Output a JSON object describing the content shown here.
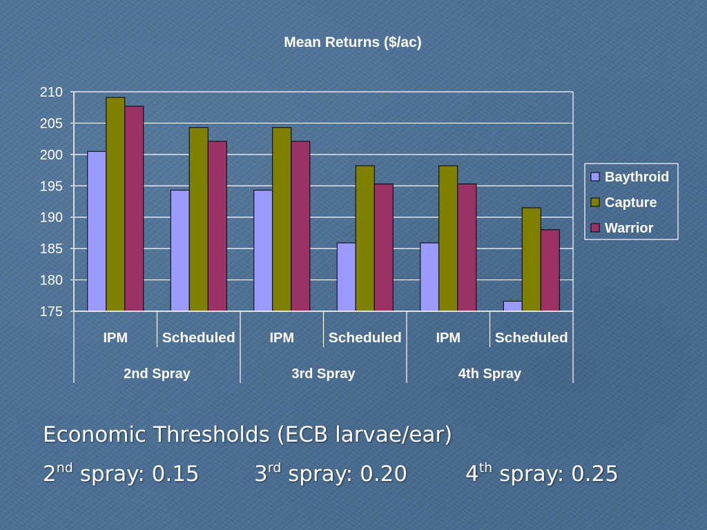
{
  "chart_data": {
    "type": "bar",
    "title": "Mean Returns ($/ac)",
    "xlabel": "",
    "ylabel": "",
    "ylim": [
      175,
      210
    ],
    "yticks": [
      175,
      180,
      185,
      190,
      195,
      200,
      205,
      210
    ],
    "categories": [
      "IPM",
      "Scheduled",
      "IPM",
      "Scheduled",
      "IPM",
      "Scheduled"
    ],
    "groups": [
      {
        "label": "2nd Spray",
        "span": 2
      },
      {
        "label": "3rd Spray",
        "span": 2
      },
      {
        "label": "4th Spray",
        "span": 2
      }
    ],
    "series": [
      {
        "name": "Baythroid",
        "color": "#9999ff",
        "values": [
          200.5,
          194.3,
          194.3,
          185.9,
          185.9,
          176.6
        ]
      },
      {
        "name": "Capture",
        "color": "#808000",
        "values": [
          209.1,
          204.3,
          204.3,
          198.2,
          198.2,
          191.5
        ]
      },
      {
        "name": "Warrior",
        "color": "#993366",
        "values": [
          207.7,
          202.1,
          202.1,
          195.3,
          195.3,
          188.0
        ]
      }
    ],
    "grid": true,
    "legend": "right"
  },
  "caption": {
    "heading": "Economic Thresholds (ECB larvae/ear)",
    "items": [
      {
        "num": "2",
        "suffix": "nd",
        "text": " spray: 0.15"
      },
      {
        "num": "3",
        "suffix": "rd",
        "text": " spray: 0.20"
      },
      {
        "num": "4",
        "suffix": "th",
        "text": " spray: 0.25"
      }
    ]
  }
}
